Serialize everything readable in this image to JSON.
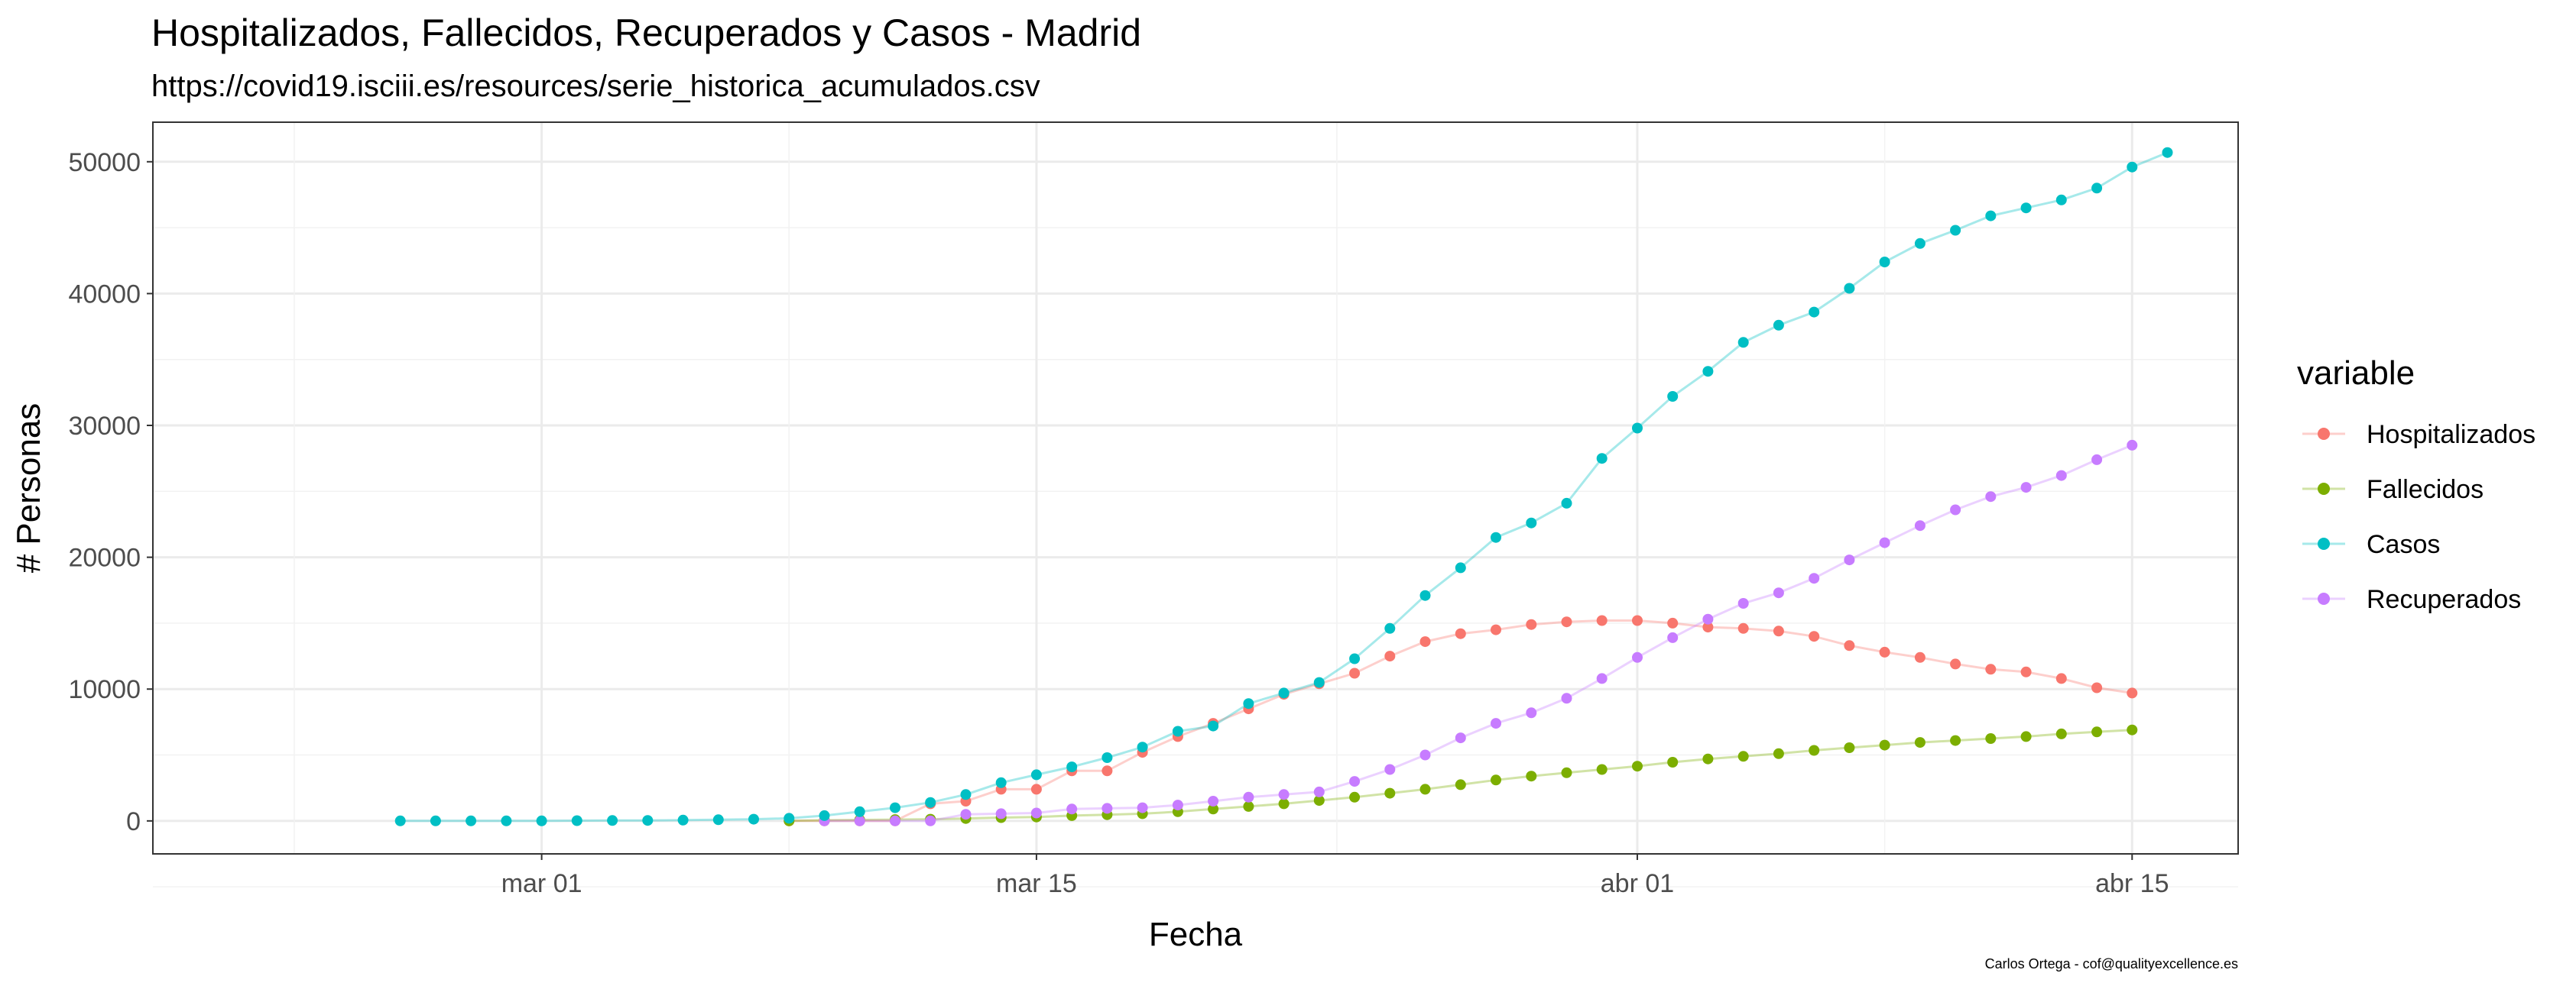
{
  "chart_data": {
    "type": "line",
    "title": "Hospitalizados, Fallecidos, Recuperados y Casos - Madrid",
    "subtitle": "https://covid19.isciii.es/resources/serie_historica_acumulados.csv",
    "xlabel": "Fecha",
    "ylabel": "# Personas",
    "caption": "Carlos Ortega - cof@qualityexcellence.es",
    "legend_title": "variable",
    "legend_position": "right",
    "grid": true,
    "x_start_date": "2020-02-20",
    "x_ticks": [
      {
        "label": "mar 01",
        "date": "2020-03-01"
      },
      {
        "label": "mar 15",
        "date": "2020-03-15"
      },
      {
        "label": "abr 01",
        "date": "2020-04-01"
      },
      {
        "label": "abr 15",
        "date": "2020-04-15"
      }
    ],
    "xlim": [
      "2020-02-19",
      "2020-04-18"
    ],
    "ylim": [
      -2500,
      53000
    ],
    "y_ticks": [
      0,
      10000,
      20000,
      30000,
      40000,
      50000
    ],
    "series": [
      {
        "name": "Hospitalizados",
        "color": "#F8766D",
        "start": "2020-03-08",
        "values": [
          0,
          0,
          0,
          0,
          1300,
          1500,
          2400,
          2400,
          3800,
          3800,
          5200,
          6400,
          7400,
          8500,
          9600,
          10400,
          11200,
          12500,
          13600,
          14200,
          14500,
          14900,
          15100,
          15200,
          15200,
          15000,
          14700,
          14600,
          14400,
          14000,
          13300,
          12800,
          12400,
          11900,
          11500,
          11300,
          10800,
          10100,
          9700
        ]
      },
      {
        "name": "Fallecidos",
        "color": "#7CAE00",
        "start": "2020-03-08",
        "values": [
          0,
          50,
          80,
          100,
          130,
          180,
          250,
          300,
          400,
          470,
          550,
          700,
          900,
          1100,
          1300,
          1550,
          1800,
          2100,
          2400,
          2750,
          3100,
          3400,
          3650,
          3900,
          4150,
          4450,
          4700,
          4900,
          5100,
          5350,
          5550,
          5750,
          5950,
          6100,
          6250,
          6400,
          6600,
          6750,
          6900
        ]
      },
      {
        "name": "Casos",
        "color": "#00BFC4",
        "start": "2020-02-26",
        "values": [
          0,
          0,
          0,
          0,
          0,
          20,
          30,
          40,
          60,
          90,
          130,
          200,
          400,
          700,
          1000,
          1400,
          2000,
          2900,
          3500,
          4100,
          4800,
          5600,
          6800,
          7200,
          8900,
          9700,
          10500,
          12300,
          14600,
          17100,
          19200,
          21500,
          22600,
          24100,
          27500,
          29800,
          32200,
          34100,
          36300,
          37600,
          38600,
          40400,
          42400,
          43800,
          44800,
          45900,
          46500,
          47100,
          48000,
          49600,
          50700
        ]
      },
      {
        "name": "Recuperados",
        "color": "#C77CFF",
        "start": "2020-03-09",
        "values": [
          0,
          0,
          0,
          0,
          500,
          550,
          600,
          900,
          950,
          1000,
          1200,
          1500,
          1800,
          2000,
          2200,
          3000,
          3900,
          5000,
          6300,
          7400,
          8200,
          9300,
          10800,
          12400,
          13900,
          15300,
          16500,
          17300,
          18400,
          19800,
          21100,
          22400,
          23600,
          24600,
          25300,
          26200,
          27400,
          28500
        ]
      }
    ]
  }
}
